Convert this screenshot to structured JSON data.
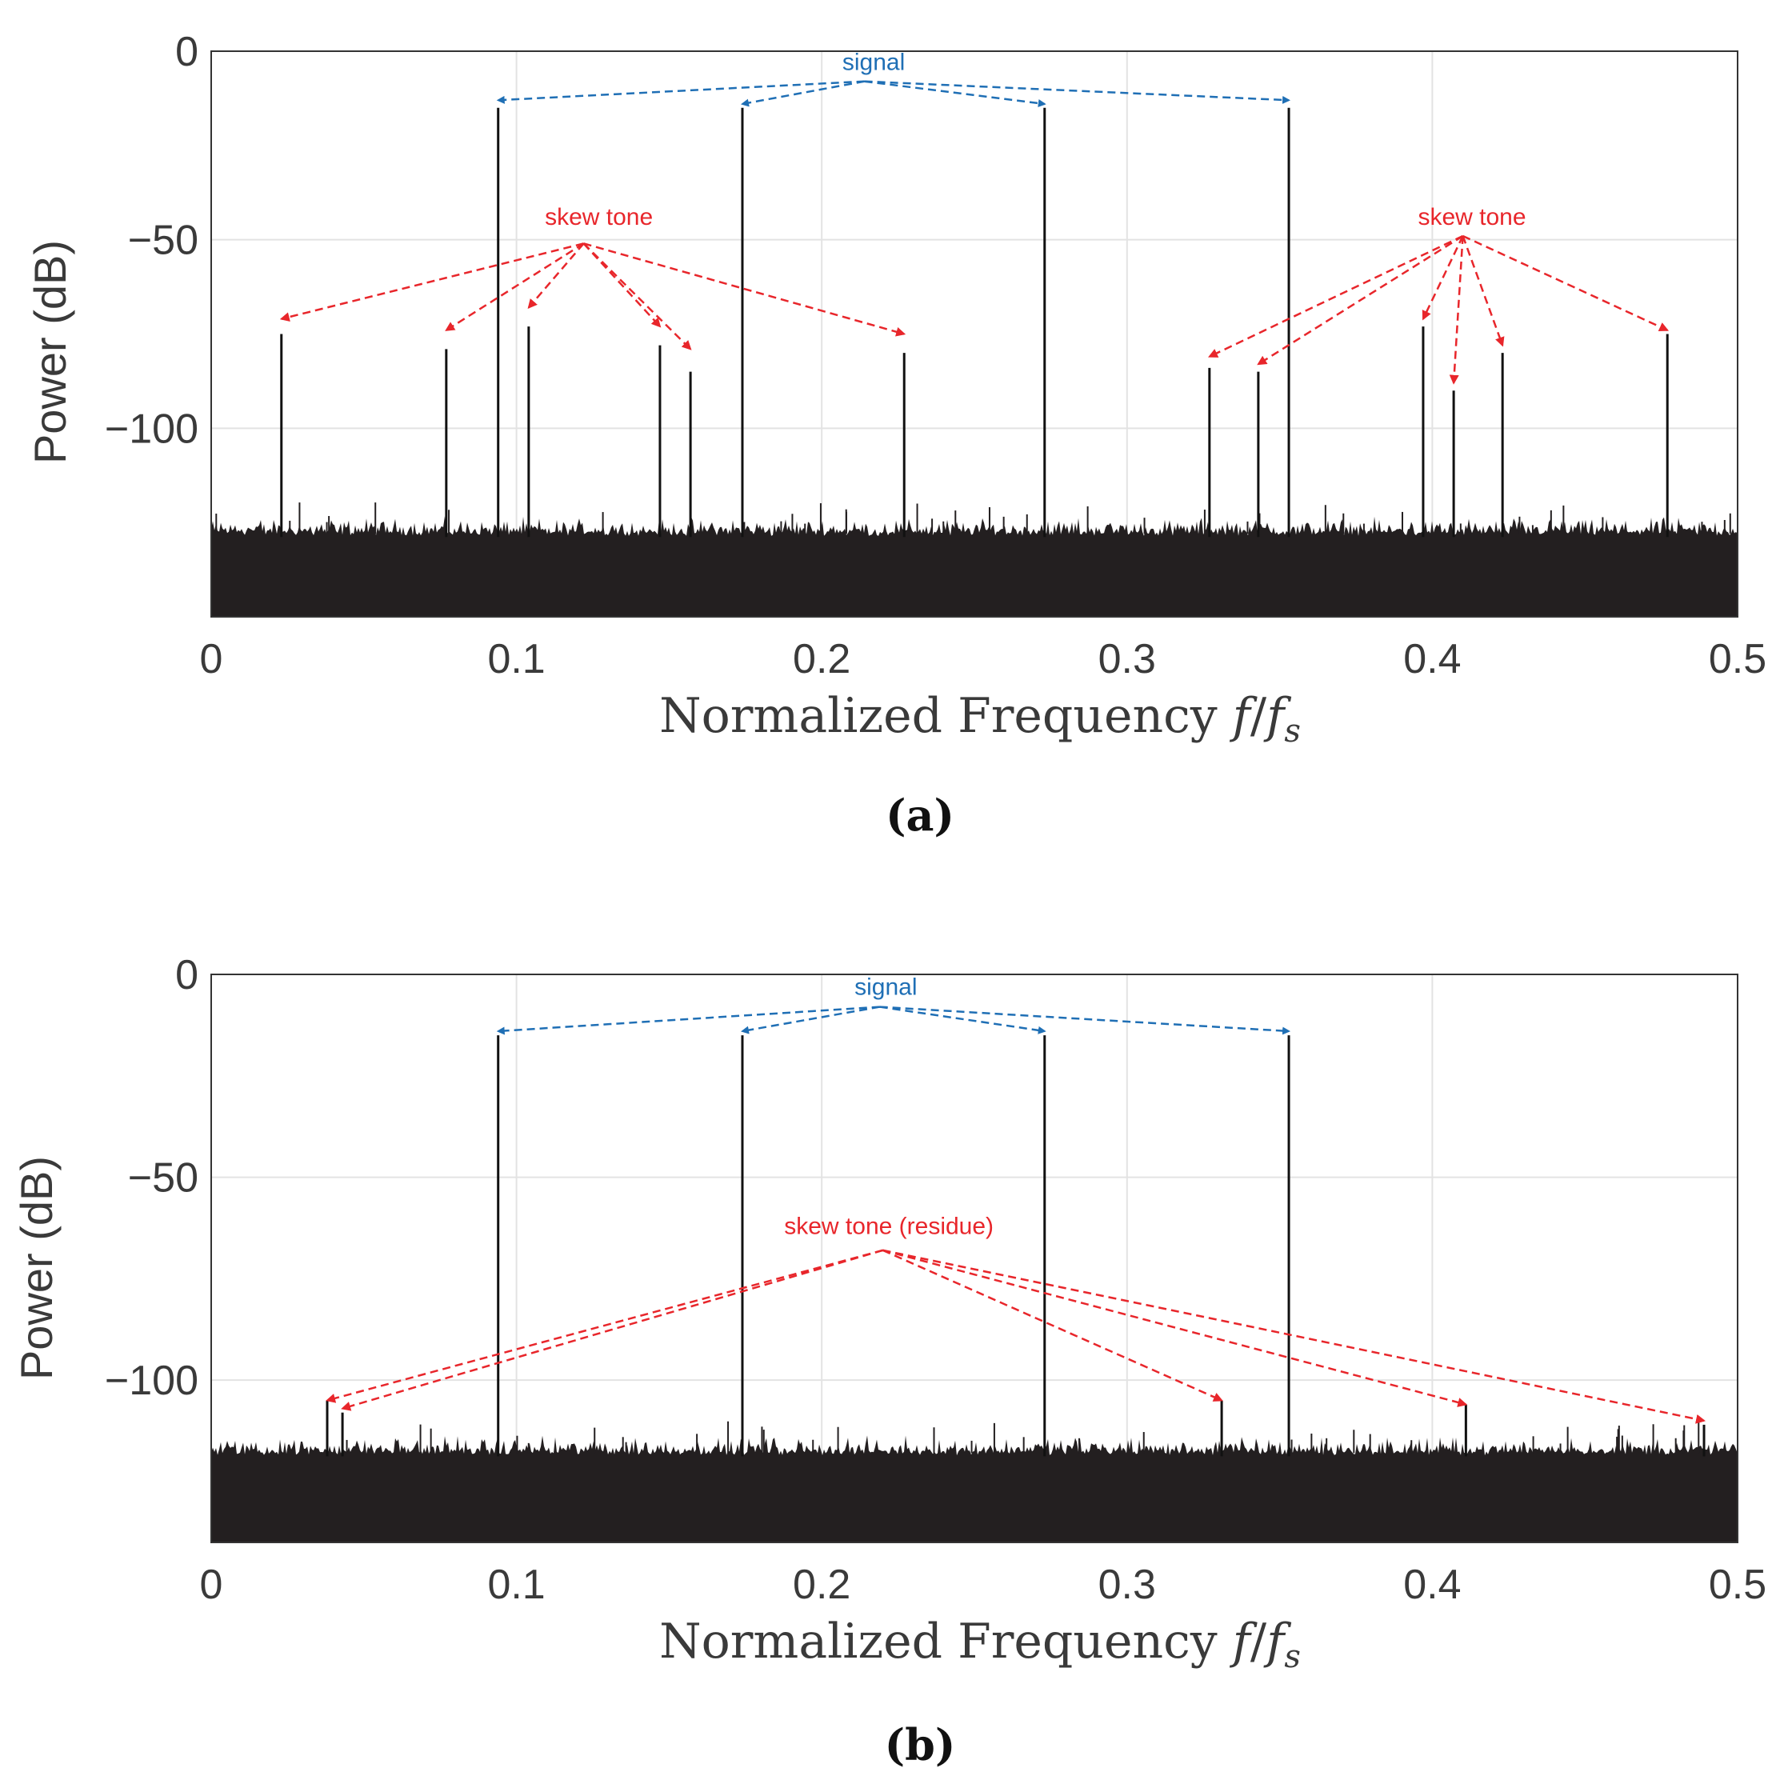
{
  "chart_data": [
    {
      "type": "line",
      "panel": "(a)",
      "xlabel": "Normalized Frequency f/f_s",
      "ylabel": "Power (dB)",
      "xlim": [
        0,
        0.5
      ],
      "ylim": [
        -150,
        0
      ],
      "xticks": [
        "0",
        "0.1",
        "0.2",
        "0.3",
        "0.4",
        "0.5"
      ],
      "xtick_values": [
        0,
        0.1,
        0.2,
        0.3,
        0.4,
        0.5
      ],
      "yticks": [
        "0",
        "−50",
        "−100"
      ],
      "ytick_values": [
        0,
        -50,
        -100
      ],
      "grid": true,
      "noise_floor": {
        "top": -128,
        "bottom": -150
      },
      "signal_tones": [
        {
          "x": 0.094,
          "y": -15
        },
        {
          "x": 0.174,
          "y": -15
        },
        {
          "x": 0.273,
          "y": -15
        },
        {
          "x": 0.353,
          "y": -15
        }
      ],
      "skew_tones": [
        {
          "x": 0.023,
          "y": -75
        },
        {
          "x": 0.077,
          "y": -79
        },
        {
          "x": 0.104,
          "y": -73
        },
        {
          "x": 0.147,
          "y": -78
        },
        {
          "x": 0.157,
          "y": -85
        },
        {
          "x": 0.227,
          "y": -80
        },
        {
          "x": 0.327,
          "y": -84
        },
        {
          "x": 0.343,
          "y": -85
        },
        {
          "x": 0.397,
          "y": -73
        },
        {
          "x": 0.407,
          "y": -90
        },
        {
          "x": 0.423,
          "y": -80
        },
        {
          "x": 0.477,
          "y": -75
        }
      ],
      "annotations": [
        {
          "text": "signal",
          "color": "#1f6fb5",
          "text_at": {
            "x": 0.217,
            "y": -5
          },
          "source": {
            "x": 0.214,
            "y": -8
          },
          "targets": [
            {
              "x": 0.094,
              "y": -13
            },
            {
              "x": 0.174,
              "y": -14
            },
            {
              "x": 0.273,
              "y": -14
            },
            {
              "x": 0.353,
              "y": -13
            }
          ]
        },
        {
          "text": "skew tone",
          "color": "#e8262b",
          "text_at": {
            "x": 0.127,
            "y": -46
          },
          "source": {
            "x": 0.122,
            "y": -51
          },
          "targets": [
            {
              "x": 0.023,
              "y": -71
            },
            {
              "x": 0.077,
              "y": -74
            },
            {
              "x": 0.104,
              "y": -68
            },
            {
              "x": 0.147,
              "y": -73
            },
            {
              "x": 0.157,
              "y": -79
            },
            {
              "x": 0.227,
              "y": -75
            }
          ]
        },
        {
          "text": "skew tone",
          "color": "#e8262b",
          "text_at": {
            "x": 0.413,
            "y": -46
          },
          "source": {
            "x": 0.41,
            "y": -49
          },
          "targets": [
            {
              "x": 0.327,
              "y": -81
            },
            {
              "x": 0.343,
              "y": -83
            },
            {
              "x": 0.397,
              "y": -71
            },
            {
              "x": 0.407,
              "y": -88
            },
            {
              "x": 0.423,
              "y": -78
            },
            {
              "x": 0.477,
              "y": -74
            }
          ]
        }
      ]
    },
    {
      "type": "line",
      "panel": "(b)",
      "xlabel": "Normalized Frequency f/f_s",
      "ylabel": "Power (dB)",
      "xlim": [
        0,
        0.5
      ],
      "ylim": [
        -140,
        0
      ],
      "xticks": [
        "0",
        "0.1",
        "0.2",
        "0.3",
        "0.4",
        "0.5"
      ],
      "xtick_values": [
        0,
        0.1,
        0.2,
        0.3,
        0.4,
        0.5
      ],
      "yticks": [
        "0",
        "−50",
        "−100"
      ],
      "ytick_values": [
        0,
        -50,
        -100
      ],
      "grid": true,
      "noise_floor": {
        "top": -118,
        "bottom": -140
      },
      "signal_tones": [
        {
          "x": 0.094,
          "y": -15
        },
        {
          "x": 0.174,
          "y": -15
        },
        {
          "x": 0.273,
          "y": -15
        },
        {
          "x": 0.353,
          "y": -15
        }
      ],
      "skew_tones": [
        {
          "x": 0.038,
          "y": -105
        },
        {
          "x": 0.043,
          "y": -108
        },
        {
          "x": 0.331,
          "y": -105
        },
        {
          "x": 0.411,
          "y": -106
        },
        {
          "x": 0.489,
          "y": -111
        }
      ],
      "annotations": [
        {
          "text": "signal",
          "color": "#1f6fb5",
          "text_at": {
            "x": 0.221,
            "y": -5
          },
          "source": {
            "x": 0.219,
            "y": -8
          },
          "targets": [
            {
              "x": 0.094,
              "y": -14
            },
            {
              "x": 0.174,
              "y": -14
            },
            {
              "x": 0.273,
              "y": -14
            },
            {
              "x": 0.353,
              "y": -14
            }
          ]
        },
        {
          "text": "skew tone (residue)",
          "color": "#e8262b",
          "text_at": {
            "x": 0.222,
            "y": -64
          },
          "source": {
            "x": 0.22,
            "y": -68
          },
          "targets": [
            {
              "x": 0.038,
              "y": -105
            },
            {
              "x": 0.043,
              "y": -107
            },
            {
              "x": 0.331,
              "y": -105
            },
            {
              "x": 0.411,
              "y": -106
            },
            {
              "x": 0.489,
              "y": -110
            }
          ]
        }
      ]
    }
  ],
  "captions": [
    "(a)",
    "(b)"
  ]
}
